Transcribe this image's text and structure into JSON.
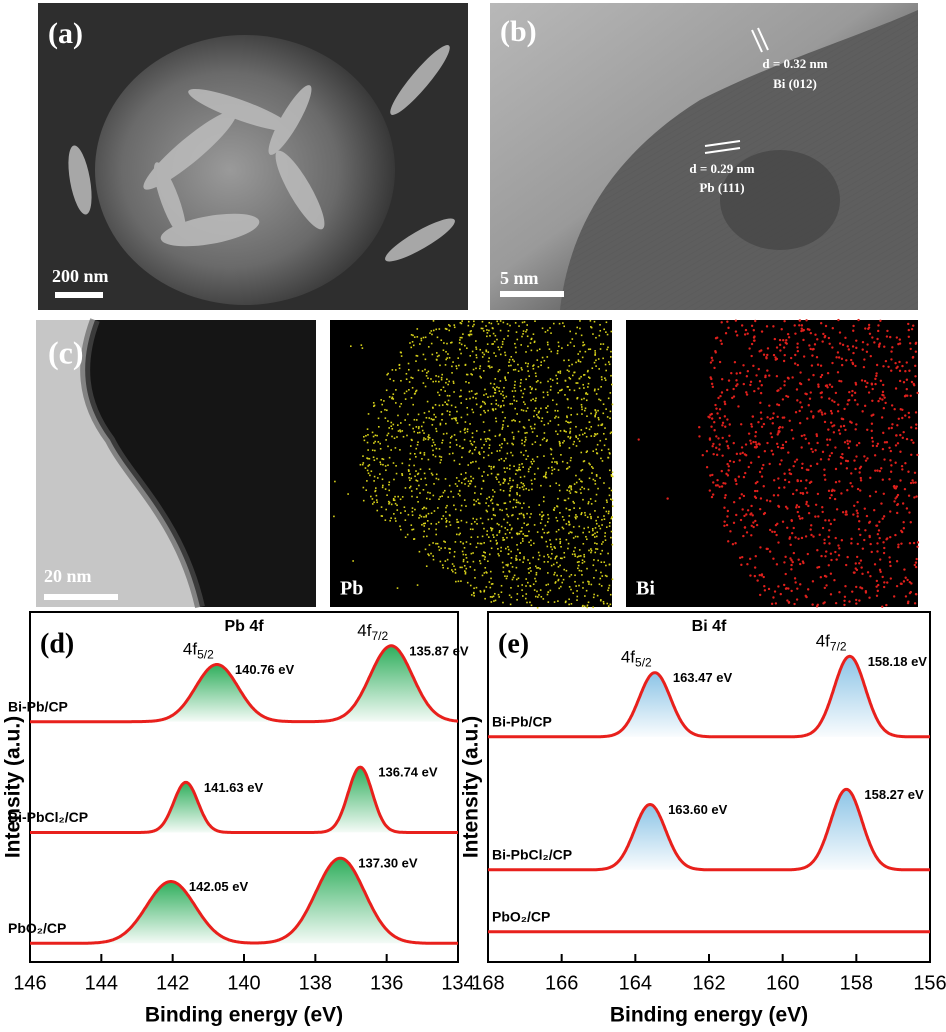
{
  "panels": {
    "a": {
      "label": "(a)",
      "scale": "200 nm"
    },
    "b": {
      "label": "(b)",
      "scale": "5 nm",
      "fringes": [
        {
          "spacing": "d = 0.32 nm",
          "plane": "Bi (012)"
        },
        {
          "spacing": "d = 0.29 nm",
          "plane": "Pb (111)"
        }
      ]
    },
    "c": {
      "label": "(c)",
      "scale": "20 nm",
      "maps": [
        "Pb",
        "Bi"
      ]
    }
  },
  "chart_data": [
    {
      "type": "line",
      "panel": "(d)",
      "title": "Pb 4f",
      "x_label": "Binding energy (eV)",
      "y_label": "Intensity (a.u.)",
      "xlim": [
        146,
        134
      ],
      "xticks": [
        146,
        144,
        142,
        140,
        138,
        136,
        134
      ],
      "ylim": [
        0,
        3
      ],
      "line_color": "#e8201c",
      "fill_color": "#2fae5c",
      "annotations": [
        {
          "base": "4f",
          "sub": "5/2"
        },
        {
          "base": "4f",
          "sub": "7/2"
        }
      ],
      "series": [
        {
          "name": "Bi-Pb/CP",
          "baseline": 2.06,
          "peaks": [
            {
              "center": 140.76,
              "label": "140.76 eV",
              "height": 0.49,
              "fwhm": 1.4
            },
            {
              "center": 135.87,
              "label": "135.87 eV",
              "height": 0.65,
              "fwhm": 1.4
            }
          ]
        },
        {
          "name": "Bi-PbCl₂/CP",
          "baseline": 1.11,
          "peaks": [
            {
              "center": 141.63,
              "label": "141.63 eV",
              "height": 0.43,
              "fwhm": 0.8
            },
            {
              "center": 136.74,
              "label": "136.74 eV",
              "height": 0.56,
              "fwhm": 0.8
            }
          ]
        },
        {
          "name": "PbO₂/CP",
          "baseline": 0.16,
          "peaks": [
            {
              "center": 142.05,
              "label": "142.05 eV",
              "height": 0.53,
              "fwhm": 1.6
            },
            {
              "center": 137.3,
              "label": "137.30 eV",
              "height": 0.73,
              "fwhm": 1.6
            }
          ]
        }
      ]
    },
    {
      "type": "line",
      "panel": "(e)",
      "title": "Bi 4f",
      "x_label": "Binding energy (eV)",
      "y_label": "Intensity (a.u.)",
      "xlim": [
        168,
        156
      ],
      "xticks": [
        168,
        166,
        164,
        162,
        160,
        158,
        156
      ],
      "ylim": [
        0,
        3
      ],
      "line_color": "#e8201c",
      "fill_color": "#8cc4e6",
      "annotations": [
        {
          "base": "4f",
          "sub": "5/2"
        },
        {
          "base": "4f",
          "sub": "7/2"
        }
      ],
      "series": [
        {
          "name": "Bi-Pb/CP",
          "baseline": 1.93,
          "peaks": [
            {
              "center": 163.47,
              "label": "163.47 eV",
              "height": 0.55,
              "fwhm": 1.0
            },
            {
              "center": 158.18,
              "label": "158.18 eV",
              "height": 0.69,
              "fwhm": 1.0
            }
          ]
        },
        {
          "name": "Bi-PbCl₂/CP",
          "baseline": 0.79,
          "peaks": [
            {
              "center": 163.6,
              "label": "163.60 eV",
              "height": 0.56,
              "fwhm": 1.0
            },
            {
              "center": 158.27,
              "label": "158.27 eV",
              "height": 0.69,
              "fwhm": 1.0
            }
          ]
        },
        {
          "name": "PbO₂/CP",
          "baseline": 0.26,
          "peaks": []
        }
      ]
    }
  ]
}
